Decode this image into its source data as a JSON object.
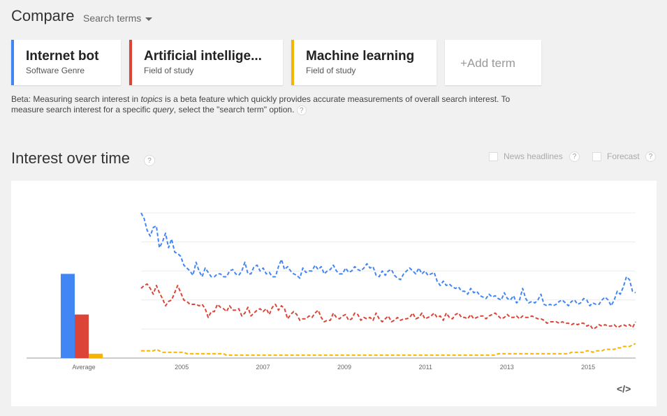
{
  "header": {
    "title": "Compare",
    "search_terms_label": "Search terms"
  },
  "terms": [
    {
      "name": "Internet bot",
      "type": "Software Genre",
      "color": "#4285f4"
    },
    {
      "name": "Artificial intellige...",
      "type": "Field of study",
      "color": "#db4437"
    },
    {
      "name": "Machine learning",
      "type": "Field of study",
      "color": "#f4b400"
    }
  ],
  "add_term_label": "+Add term",
  "beta_note": {
    "p1": "Beta: Measuring search interest in ",
    "e1": "topics",
    "p2": " is a beta feature which quickly provides accurate measurements of overall search interest. To measure search interest for a specific ",
    "e2": "query",
    "p3": ", select the \"search term\" option.",
    "help": "?"
  },
  "interest": {
    "title": "Interest over time",
    "help": "?",
    "news_headlines_label": "News headlines",
    "forecast_label": "Forecast",
    "embed_label": "</>"
  },
  "chart_data": {
    "type": "line",
    "ylim": [
      0,
      100
    ],
    "grid": true,
    "x_ticks": [
      "2005",
      "2007",
      "2009",
      "2011",
      "2013",
      "2015"
    ],
    "average_label": "Average",
    "averages": [
      {
        "name": "Internet bot",
        "value": 58
      },
      {
        "name": "Artificial intelligence",
        "value": 30
      },
      {
        "name": "Machine learning",
        "value": 3
      }
    ],
    "x_start": "2004-01",
    "x_end": "2016-03",
    "series": [
      {
        "name": "Internet bot",
        "color": "#4285f4",
        "values": [
          100,
          96,
          88,
          84,
          90,
          91,
          76,
          80,
          86,
          76,
          82,
          73,
          72,
          70,
          64,
          62,
          60,
          57,
          66,
          60,
          56,
          62,
          59,
          56,
          56,
          58,
          58,
          56,
          56,
          60,
          61,
          58,
          57,
          60,
          66,
          58,
          58,
          63,
          64,
          60,
          62,
          58,
          59,
          56,
          56,
          63,
          68,
          61,
          63,
          60,
          58,
          57,
          55,
          62,
          59,
          60,
          60,
          64,
          61,
          63,
          58,
          60,
          61,
          64,
          60,
          58,
          58,
          62,
          59,
          60,
          63,
          61,
          60,
          62,
          65,
          62,
          63,
          57,
          56,
          60,
          57,
          60,
          61,
          57,
          55,
          54,
          58,
          60,
          62,
          60,
          58,
          62,
          58,
          60,
          57,
          58,
          59,
          53,
          50,
          53,
          50,
          51,
          49,
          48,
          49,
          46,
          46,
          44,
          48,
          45,
          46,
          43,
          42,
          41,
          44,
          42,
          43,
          41,
          40,
          45,
          41,
          40,
          43,
          38,
          40,
          48,
          41,
          38,
          39,
          38,
          40,
          44,
          37,
          36,
          37,
          36,
          37,
          39,
          40,
          38,
          36,
          39,
          40,
          37,
          38,
          41,
          40,
          36,
          38,
          37,
          37,
          40,
          42,
          40,
          36,
          40,
          46,
          44,
          49,
          56,
          54,
          46,
          45
        ]
      },
      {
        "name": "Artificial intelligence",
        "color": "#db4437",
        "values": [
          48,
          50,
          51,
          48,
          44,
          50,
          45,
          41,
          36,
          39,
          40,
          45,
          50,
          45,
          40,
          39,
          37,
          37,
          37,
          36,
          37,
          34,
          28,
          32,
          32,
          37,
          35,
          34,
          32,
          36,
          33,
          33,
          34,
          29,
          31,
          35,
          29,
          31,
          33,
          34,
          32,
          34,
          30,
          35,
          37,
          33,
          36,
          34,
          27,
          30,
          32,
          30,
          26,
          27,
          27,
          29,
          28,
          31,
          33,
          28,
          25,
          26,
          26,
          31,
          28,
          27,
          29,
          30,
          26,
          27,
          31,
          30,
          26,
          28,
          27,
          28,
          26,
          31,
          27,
          25,
          27,
          29,
          25,
          26,
          28,
          26,
          27,
          27,
          28,
          31,
          27,
          28,
          31,
          27,
          28,
          29,
          31,
          28,
          29,
          26,
          31,
          28,
          27,
          30,
          31,
          28,
          28,
          27,
          30,
          27,
          28,
          29,
          29,
          27,
          29,
          30,
          31,
          29,
          27,
          28,
          30,
          28,
          28,
          29,
          27,
          29,
          28,
          28,
          29,
          28,
          27,
          27,
          26,
          24,
          25,
          25,
          25,
          24,
          25,
          24,
          24,
          23,
          24,
          23,
          24,
          24,
          22,
          23,
          20,
          21,
          23,
          22,
          23,
          22,
          22,
          23,
          21,
          22,
          23,
          22,
          23,
          21,
          25
        ]
      },
      {
        "name": "Machine learning",
        "color": "#f4b400",
        "values": [
          5,
          5,
          5,
          5,
          5,
          6,
          5,
          4,
          4,
          4,
          4,
          4,
          4,
          4,
          4,
          3,
          3,
          3,
          3,
          3,
          3,
          3,
          3,
          3,
          3,
          3,
          3,
          3,
          2,
          2,
          2,
          2,
          2,
          2,
          2,
          2,
          2,
          2,
          2,
          2,
          2,
          2,
          2,
          2,
          2,
          2,
          2,
          2,
          2,
          2,
          2,
          2,
          2,
          2,
          2,
          2,
          2,
          2,
          2,
          2,
          2,
          2,
          2,
          2,
          2,
          2,
          2,
          2,
          2,
          2,
          2,
          2,
          2,
          2,
          2,
          2,
          2,
          2,
          2,
          2,
          2,
          2,
          2,
          2,
          2,
          2,
          2,
          2,
          2,
          2,
          2,
          2,
          2,
          2,
          2,
          2,
          2,
          2,
          2,
          2,
          2,
          2,
          2,
          2,
          2,
          2,
          2,
          2,
          2,
          2,
          2,
          2,
          2,
          2,
          2,
          2,
          2,
          3,
          3,
          3,
          3,
          3,
          3,
          3,
          3,
          3,
          3,
          3,
          3,
          3,
          3,
          3,
          3,
          3,
          3,
          3,
          3,
          3,
          3,
          3,
          3,
          4,
          4,
          4,
          4,
          4,
          5,
          5,
          4,
          5,
          5,
          5,
          6,
          6,
          6,
          6,
          7,
          7,
          8,
          8,
          8,
          9,
          10
        ]
      }
    ]
  }
}
